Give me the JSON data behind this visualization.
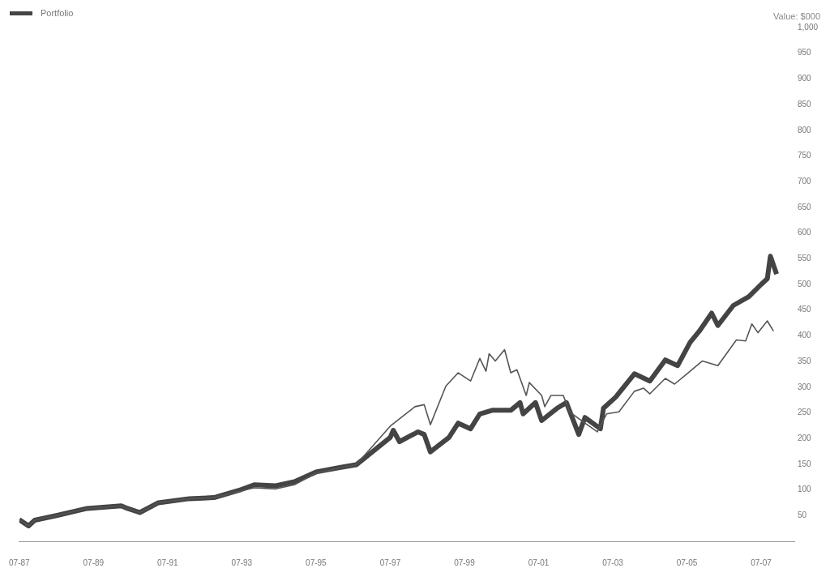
{
  "chart_data": {
    "type": "line",
    "ylabel": "Value: $000",
    "legend": "top left",
    "grid": false,
    "marker": "none",
    "line_style": "solid",
    "xlim": [
      "1987-07",
      "2008-06"
    ],
    "xticks": [
      {
        "value": "1987-07",
        "label": "07-87"
      },
      {
        "value": "1989-07",
        "label": "07-89"
      },
      {
        "value": "1991-07",
        "label": "07-91"
      },
      {
        "value": "1993-07",
        "label": "07-93"
      },
      {
        "value": "1995-07",
        "label": "07-95"
      },
      {
        "value": "1997-07",
        "label": "07-97"
      },
      {
        "value": "1999-07",
        "label": "07-99"
      },
      {
        "value": "2001-07",
        "label": "07-01"
      },
      {
        "value": "2003-07",
        "label": "07-03"
      },
      {
        "value": "2005-07",
        "label": "07-05"
      },
      {
        "value": "2007-07",
        "label": "07-07"
      }
    ],
    "ylim": [
      0,
      1000
    ],
    "yticks": [
      50,
      100,
      150,
      200,
      250,
      300,
      350,
      400,
      450,
      500,
      550,
      600,
      650,
      700,
      750,
      800,
      850,
      900,
      950,
      {
        "value": 1000,
        "label": "1,000"
      }
    ],
    "series": [
      {
        "name": "Portfolio",
        "color": "#444444",
        "x": [
          "1987-07",
          "1987-10",
          "1987-12",
          "1988-07",
          "1989-05",
          "1990-04",
          "1990-06",
          "1990-10",
          "1991-04",
          "1992-02",
          "1992-10",
          "1993-06",
          "1993-11",
          "1994-06",
          "1994-12",
          "1995-07",
          "1996-03",
          "1996-08",
          "1997-07",
          "1997-08",
          "1997-10",
          "1998-04",
          "1998-06",
          "1998-08",
          "1999-02",
          "1999-05",
          "1999-09",
          "1999-12",
          "2000-04",
          "2000-10",
          "2001-01",
          "2001-02",
          "2001-06",
          "2001-08",
          "2002-01",
          "2002-04",
          "2002-08",
          "2002-10",
          "2003-03",
          "2003-04",
          "2003-08",
          "2004-02",
          "2004-07",
          "2004-12",
          "2005-04",
          "2005-08",
          "2005-11",
          "2006-03",
          "2006-05",
          "2006-10",
          "2007-03",
          "2007-07",
          "2007-09",
          "2007-10",
          "2007-12"
        ],
        "values": [
          42,
          30,
          41,
          50,
          64,
          69,
          64,
          56,
          75,
          83,
          85,
          99,
          110,
          108,
          116,
          135,
          144,
          149,
          202,
          216,
          194,
          213,
          208,
          174,
          202,
          230,
          219,
          248,
          255,
          255,
          270,
          248,
          270,
          235,
          259,
          270,
          208,
          241,
          219,
          259,
          281,
          326,
          312,
          353,
          342,
          387,
          409,
          444,
          420,
          459,
          476,
          500,
          511,
          555,
          520
        ]
      },
      {
        "color": "#555555",
        "x": [
          "1987-07",
          "1987-10",
          "1987-12",
          "1988-07",
          "1989-05",
          "1990-04",
          "1990-06",
          "1990-10",
          "1991-04",
          "1992-02",
          "1992-10",
          "1993-06",
          "1993-11",
          "1994-06",
          "1994-12",
          "1995-07",
          "1996-03",
          "1996-08",
          "1997-07",
          "1998-03",
          "1998-06",
          "1998-08",
          "1999-01",
          "1999-05",
          "1999-09",
          "1999-12",
          "2000-02",
          "2000-03",
          "2000-05",
          "2000-08",
          "2000-10",
          "2000-12",
          "2001-03",
          "2001-04",
          "2001-08",
          "2001-09",
          "2001-11",
          "2002-03",
          "2002-05",
          "2002-10",
          "2003-02",
          "2003-05",
          "2003-09",
          "2004-02",
          "2004-05",
          "2004-07",
          "2004-12",
          "2005-03",
          "2005-07",
          "2005-12",
          "2006-05",
          "2006-11",
          "2007-02",
          "2007-04",
          "2007-06",
          "2007-09",
          "2007-11"
        ],
        "values": [
          42,
          30,
          41,
          50,
          64,
          69,
          64,
          56,
          75,
          83,
          85,
          97,
          104,
          102,
          110,
          133,
          143,
          149,
          224,
          262,
          266,
          227,
          302,
          328,
          312,
          356,
          331,
          365,
          351,
          373,
          328,
          334,
          284,
          309,
          284,
          262,
          284,
          284,
          252,
          230,
          213,
          248,
          252,
          292,
          298,
          287,
          317,
          306,
          326,
          351,
          342,
          392,
          390,
          423,
          406,
          429,
          409
        ]
      }
    ]
  }
}
